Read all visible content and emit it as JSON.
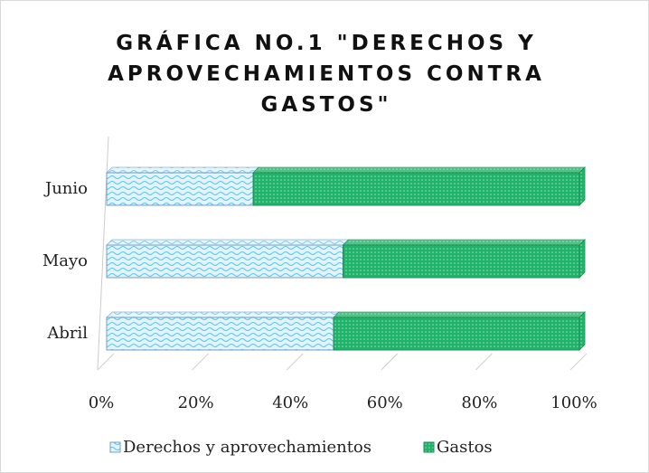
{
  "chart_data": {
    "type": "stacked_bar_horizontal_100",
    "title": "GRÁFICA NO.1 \"DERECHOS Y APROVECHAMIENTOS CONTRA GASTOS\"",
    "categories": [
      "Abril",
      "Mayo",
      "Junio"
    ],
    "series": [
      {
        "name": "Derechos y aprovechamientos",
        "color": "#bfe9f7",
        "values": [
          48,
          50,
          31
        ]
      },
      {
        "name": "Gastos",
        "color": "#22b36a",
        "values": [
          52,
          50,
          69
        ]
      }
    ],
    "xlim": [
      0,
      100
    ],
    "xticks": [
      {
        "value": 0,
        "label": "0%"
      },
      {
        "value": 20,
        "label": "20%"
      },
      {
        "value": 40,
        "label": "40%"
      },
      {
        "value": 60,
        "label": "60%"
      },
      {
        "value": 80,
        "label": "80%"
      },
      {
        "value": 100,
        "label": "100%"
      }
    ],
    "grid": true,
    "legend": "bottom"
  }
}
